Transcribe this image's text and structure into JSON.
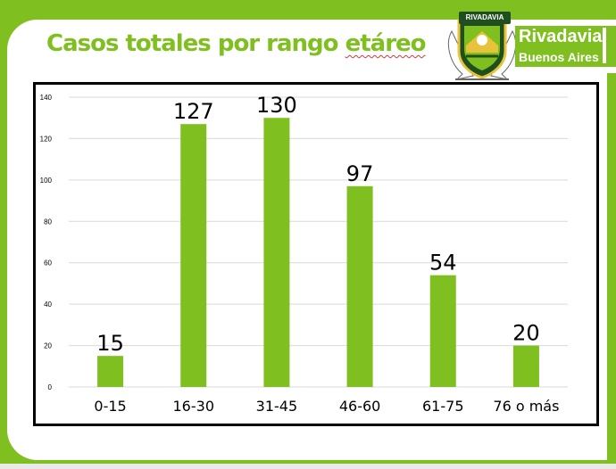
{
  "slide": {
    "title_main": "Casos totales por rango ",
    "title_flagged": "etáreo"
  },
  "logo": {
    "banner": "RIVADAVIA",
    "name": "Rivadavia",
    "subtitle": "Buenos Aires",
    "colors": {
      "green": "#7fbf1f",
      "dark_green": "#1f4f1f",
      "gold": "#e8c23a"
    }
  },
  "chart_data": {
    "type": "bar",
    "title": "",
    "xlabel": "",
    "ylabel": "",
    "categories": [
      "0-15",
      "16-30",
      "31-45",
      "46-60",
      "61-75",
      "76 o más"
    ],
    "values": [
      15,
      127,
      130,
      97,
      54,
      20
    ],
    "data_labels": [
      "15",
      "127",
      "130",
      "97",
      "54",
      "20"
    ],
    "ylim": [
      0,
      140
    ],
    "yticks": [
      0,
      20,
      40,
      60,
      80,
      100,
      120,
      140
    ],
    "grid": true,
    "legend": "none",
    "bar_color": "#7fbf1f"
  }
}
